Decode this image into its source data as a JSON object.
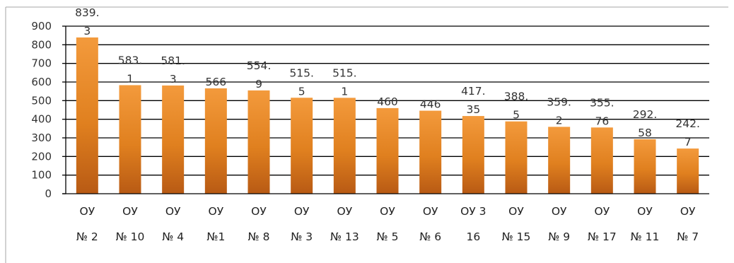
{
  "chart_data": {
    "type": "bar",
    "categories": [
      [
        "ОУ",
        "№ 2"
      ],
      [
        "ОУ",
        "№ 10"
      ],
      [
        "ОУ",
        "№ 4"
      ],
      [
        "ОУ",
        "№1"
      ],
      [
        "ОУ",
        "№ 8"
      ],
      [
        "ОУ",
        "№ 3"
      ],
      [
        "ОУ",
        "№ 13"
      ],
      [
        "ОУ",
        "№ 5"
      ],
      [
        "ОУ",
        "№ 6"
      ],
      [
        "ОУ 3",
        "16"
      ],
      [
        "ОУ",
        "№ 15"
      ],
      [
        "ОУ",
        "№ 9"
      ],
      [
        "ОУ",
        "№ 17"
      ],
      [
        "ОУ",
        "№ 11"
      ],
      [
        "ОУ",
        "№ 7"
      ]
    ],
    "values": [
      839.3,
      583.1,
      581.3,
      566,
      554.9,
      515.5,
      515.1,
      460,
      446,
      417.35,
      388.5,
      359.2,
      355.76,
      292.58,
      242.7
    ],
    "data_labels": [
      [
        "839.",
        "3"
      ],
      [
        "583.",
        "1"
      ],
      [
        "581.",
        "3"
      ],
      [
        "566"
      ],
      [
        "554.",
        "9"
      ],
      [
        "515.",
        "5"
      ],
      [
        "515.",
        "1"
      ],
      [
        "460"
      ],
      [
        "446"
      ],
      [
        "417.",
        "35"
      ],
      [
        "388.",
        "5"
      ],
      [
        "359.",
        "2"
      ],
      [
        "355.",
        "76"
      ],
      [
        "292.",
        "58"
      ],
      [
        "242.",
        "7"
      ]
    ],
    "ylim": [
      0,
      900
    ],
    "yticks": [
      "0",
      "100",
      "200",
      "300",
      "400",
      "500",
      "600",
      "700",
      "800",
      "900"
    ],
    "grid": true,
    "legend": "none",
    "title": "",
    "xlabel": "",
    "ylabel": "",
    "colors": {
      "bar_light": "#f39a3c",
      "bar_dark": "#b85a14",
      "bar_mid": "#e0801f"
    }
  }
}
